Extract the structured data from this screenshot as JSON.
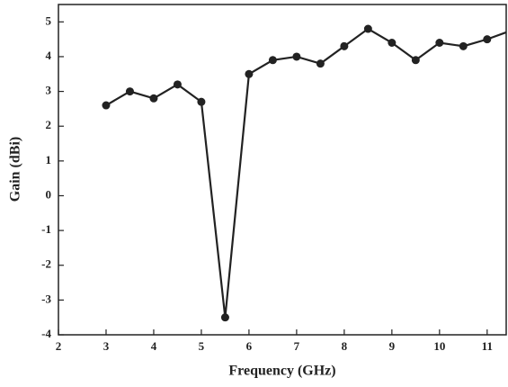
{
  "chart_data": {
    "type": "line",
    "x_label": "Frequency (GHz)",
    "y_label": "Gain (dBi)",
    "x": [
      3,
      3.5,
      4,
      4.5,
      5,
      5.5,
      6,
      6.5,
      7,
      7.5,
      8,
      8.5,
      9,
      9.5,
      10,
      10.5,
      11,
      11.5
    ],
    "series": [
      {
        "color": "#222222",
        "values": [
          2.6,
          3.0,
          2.8,
          3.2,
          2.7,
          -3.5,
          3.5,
          3.9,
          4.0,
          3.8,
          4.3,
          4.8,
          4.4,
          3.9,
          4.4,
          4.3,
          4.5,
          4.75
        ]
      }
    ],
    "xlim": [
      2,
      11.4
    ],
    "xticks": [
      2,
      3,
      4,
      5,
      6,
      7,
      8,
      9,
      10,
      11
    ],
    "ylim": [
      -4,
      5.5
    ],
    "yticks": [
      -4,
      -3,
      -2,
      -1,
      0,
      1,
      2,
      3,
      4,
      5
    ]
  }
}
